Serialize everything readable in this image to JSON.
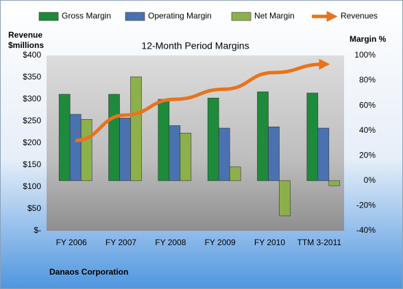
{
  "chart_data": {
    "type": "bar-line",
    "title": "12-Month Period Margins",
    "ylabel": [
      "Revenue",
      "$millions"
    ],
    "y2label": "Margin %",
    "footer": "Danaos Corporation",
    "categories": [
      "FY 2006",
      "FY 2007",
      "FY 2008",
      "FY 2009",
      "FY 2010",
      "TTM 3-2011"
    ],
    "series": [
      {
        "name": "Gross Margin",
        "type": "bar",
        "axis": "y2",
        "color": "#1e8a3c",
        "values": [
          69,
          69,
          65,
          66,
          71,
          70
        ]
      },
      {
        "name": "Operating Margin",
        "type": "bar",
        "axis": "y2",
        "color": "#4a72b0",
        "values": [
          53,
          50,
          44,
          42,
          43,
          42
        ]
      },
      {
        "name": "Net Margin",
        "type": "bar",
        "axis": "y2",
        "color": "#8cb04a",
        "values": [
          49,
          83,
          38,
          11,
          -28,
          -4
        ]
      },
      {
        "name": "Revenues",
        "type": "line",
        "axis": "y",
        "color": "#e8731c",
        "values": [
          206,
          264,
          300,
          323,
          361,
          380
        ]
      }
    ],
    "ylim": [
      0,
      400
    ],
    "yticks": [
      {
        "value": 400,
        "label": "$400"
      },
      {
        "value": 350,
        "label": "$350"
      },
      {
        "value": 300,
        "label": "$300"
      },
      {
        "value": 250,
        "label": "$250"
      },
      {
        "value": 200,
        "label": "$200"
      },
      {
        "value": 150,
        "label": "$150"
      },
      {
        "value": 100,
        "label": "$100"
      },
      {
        "value": 50,
        "label": "$50"
      },
      {
        "value": 0,
        "label": "$-"
      }
    ],
    "y2lim": [
      -40,
      100
    ],
    "y2ticks": [
      {
        "value": 100,
        "label": "100%"
      },
      {
        "value": 80,
        "label": "80%"
      },
      {
        "value": 60,
        "label": "60%"
      },
      {
        "value": 40,
        "label": "40%"
      },
      {
        "value": 20,
        "label": "20%"
      },
      {
        "value": 0,
        "label": "0%"
      },
      {
        "value": -20,
        "label": "-20%"
      },
      {
        "value": -40,
        "label": "-40%"
      }
    ],
    "grid": false
  }
}
